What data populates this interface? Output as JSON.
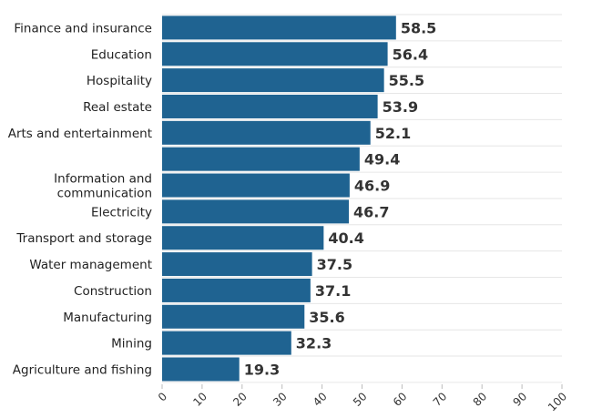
{
  "chart_data": {
    "type": "bar",
    "orientation": "horizontal",
    "categories": [
      "Finance and insurance",
      "Education",
      "Hospitality",
      "Real estate",
      "Arts and entertainment",
      "",
      "Information and communication",
      "Electricity",
      "Transport and storage",
      "Water management",
      "Construction",
      "Manufacturing",
      "Mining",
      "Agriculture and fishing"
    ],
    "category_lines": [
      [
        "Finance and insurance"
      ],
      [
        "Education"
      ],
      [
        "Hospitality"
      ],
      [
        "Real estate"
      ],
      [
        "Arts and entertainment"
      ],
      [],
      [
        "Information and",
        "communication"
      ],
      [
        "Electricity"
      ],
      [
        "Transport and storage"
      ],
      [
        "Water management"
      ],
      [
        "Construction"
      ],
      [
        "Manufacturing"
      ],
      [
        "Mining"
      ],
      [
        "Agriculture and fishing"
      ]
    ],
    "values": [
      58.5,
      56.4,
      55.5,
      53.9,
      52.1,
      49.4,
      46.9,
      46.7,
      40.4,
      37.5,
      37.1,
      35.6,
      32.3,
      19.3
    ],
    "value_labels": [
      "58.5",
      "56.4",
      "55.5",
      "53.9",
      "52.1",
      "49.4",
      "46.9",
      "46.7",
      "40.4",
      "37.5",
      "37.1",
      "35.6",
      "32.3",
      "19.3"
    ],
    "xlim": [
      0,
      100
    ],
    "xticks": [
      0,
      10,
      20,
      30,
      40,
      50,
      60,
      70,
      80,
      90,
      100
    ],
    "xtick_labels": [
      "0",
      "10",
      "20",
      "30",
      "40",
      "50",
      "60",
      "70",
      "80",
      "90",
      "100"
    ],
    "grid": true,
    "colors": {
      "bar": "#1f6391",
      "grid": "#e6e6e6",
      "text": "#222222"
    }
  }
}
